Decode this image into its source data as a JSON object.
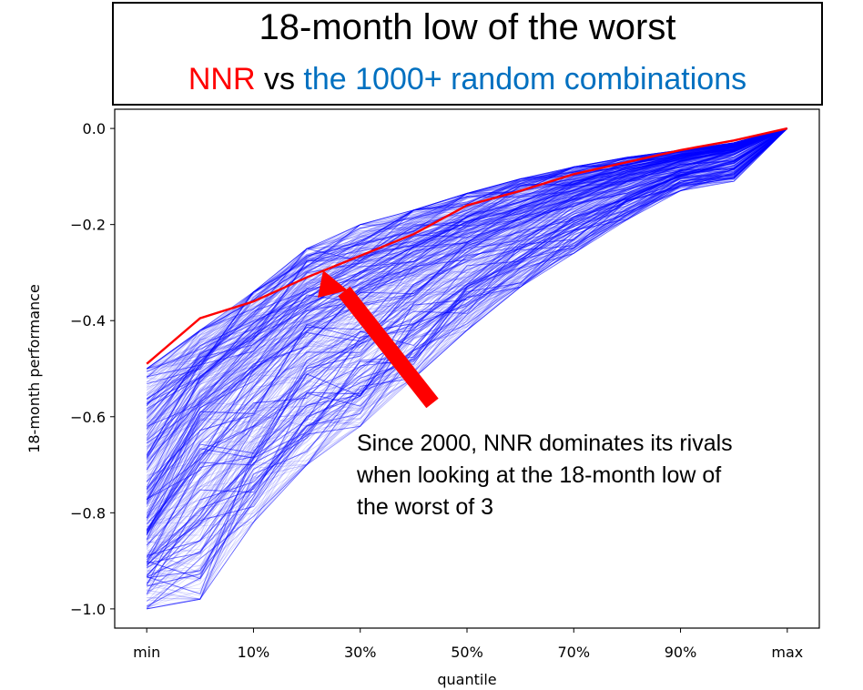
{
  "title": {
    "line1": "18-month low of the worst",
    "line2_red": "NNR",
    "line2_black": " vs ",
    "line2_blue": "the 1000+ random combinations"
  },
  "annotation": "Since 2000, NNR dominates its rivals when looking at the 18-month low of the worst of 3",
  "colors": {
    "highlight": "#ff0000",
    "random": "#0000ff",
    "arrow": "#ff0000",
    "subtitle_blue": "#0070c0"
  },
  "chart_data": {
    "type": "line",
    "xlabel": "quantile",
    "ylabel": "18-month performance",
    "x": [
      0,
      10,
      20,
      30,
      40,
      50,
      60,
      70,
      80,
      90,
      100,
      110,
      120
    ],
    "xticks": [
      {
        "value": 0,
        "label": "min"
      },
      {
        "value": 20,
        "label": "10%"
      },
      {
        "value": 40,
        "label": "30%"
      },
      {
        "value": 60,
        "label": "50%"
      },
      {
        "value": 80,
        "label": "70%"
      },
      {
        "value": 100,
        "label": "90%"
      },
      {
        "value": 120,
        "label": "max"
      }
    ],
    "yticks": [
      0.0,
      -0.2,
      -0.4,
      -0.6,
      -0.8,
      -1.0
    ],
    "ytick_labels": [
      "0.0",
      "−0.2",
      "−0.4",
      "−0.6",
      "−0.8",
      "−1.0"
    ],
    "xlim": [
      -6,
      126
    ],
    "ylim": [
      -1.04,
      0.04
    ],
    "grid": false,
    "series": [
      {
        "name": "NNR",
        "values": [
          -0.49,
          -0.395,
          -0.36,
          -0.31,
          -0.265,
          -0.22,
          -0.16,
          -0.13,
          -0.095,
          -0.07,
          -0.045,
          -0.025,
          0.0
        ]
      }
    ],
    "random_band": {
      "count": 1000,
      "low": [
        -1.0,
        -0.98,
        -0.82,
        -0.7,
        -0.62,
        -0.52,
        -0.42,
        -0.33,
        -0.26,
        -0.19,
        -0.13,
        -0.11,
        0.0
      ],
      "high": [
        -0.5,
        -0.42,
        -0.34,
        -0.25,
        -0.2,
        -0.17,
        -0.135,
        -0.105,
        -0.08,
        -0.06,
        -0.045,
        -0.03,
        0.0
      ],
      "median": [
        -0.8,
        -0.62,
        -0.52,
        -0.43,
        -0.37,
        -0.31,
        -0.25,
        -0.2,
        -0.15,
        -0.11,
        -0.075,
        -0.05,
        0.0
      ]
    }
  }
}
